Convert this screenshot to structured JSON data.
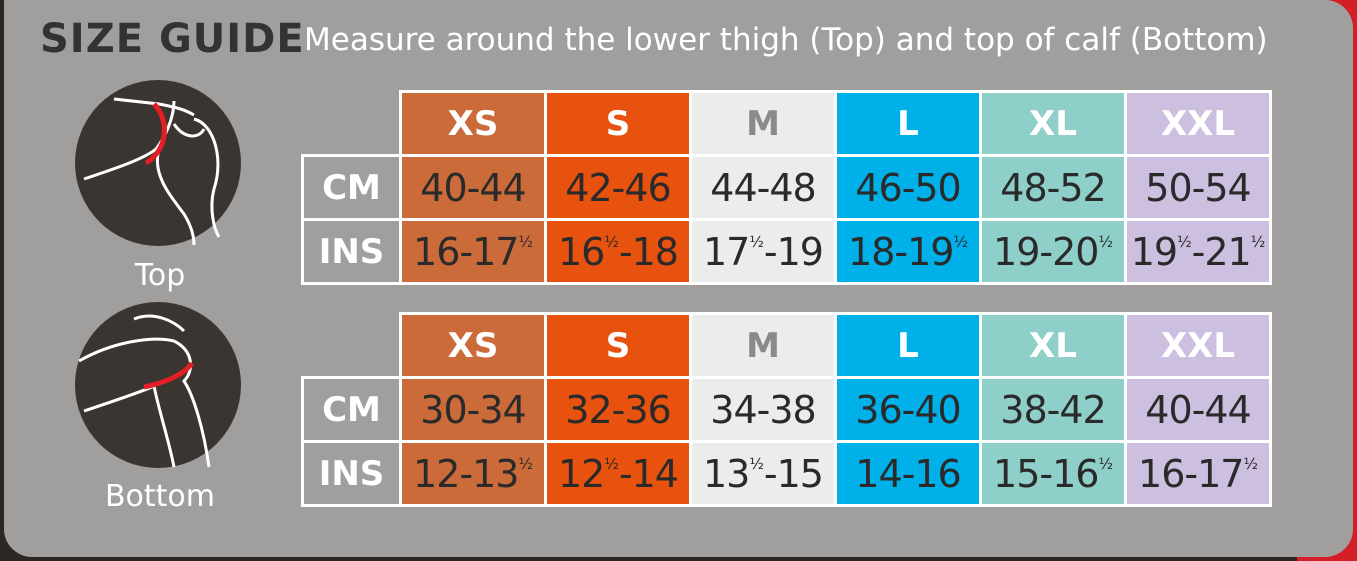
{
  "title": "SIZE GUIDE",
  "subtitle": "Measure around the lower thigh (Top) and top of calf (Bottom)",
  "size_colors": [
    "#cc6b3a",
    "#e8520f",
    "#ececec",
    "#00b0e8",
    "#8ecfc9",
    "#cdbfe0"
  ],
  "tables": [
    {
      "label": "Top",
      "sizes": [
        "XS",
        "S",
        "M",
        "L",
        "XL",
        "XXL"
      ],
      "rows": [
        {
          "unit": "CM",
          "values": [
            "40-44",
            "42-46",
            "44-48",
            "46-50",
            "48-52",
            "50-54"
          ]
        },
        {
          "unit": "INS",
          "values": [
            "16-17½",
            "16½-18",
            "17½-19",
            "18-19½",
            "19-20½",
            "19½-21½"
          ]
        }
      ]
    },
    {
      "label": "Bottom",
      "sizes": [
        "XS",
        "S",
        "M",
        "L",
        "XL",
        "XXL"
      ],
      "rows": [
        {
          "unit": "CM",
          "values": [
            "30-34",
            "32-36",
            "34-38",
            "36-40",
            "38-42",
            "40-44"
          ]
        },
        {
          "unit": "INS",
          "values": [
            "12-13½",
            "12½-14",
            "13½-15",
            "14-16",
            "15-16½",
            "16-17½"
          ]
        }
      ]
    }
  ]
}
